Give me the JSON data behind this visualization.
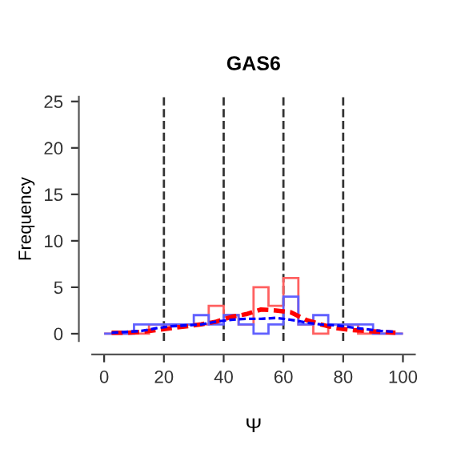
{
  "chart_data": {
    "type": "histogram",
    "title": "GAS6",
    "xlabel": "Ψ",
    "ylabel": "Frequency",
    "bins": [
      0,
      5,
      10,
      15,
      20,
      25,
      30,
      35,
      40,
      45,
      50,
      55,
      60,
      65,
      70,
      75,
      80,
      85,
      90,
      95,
      100
    ],
    "series": [
      {
        "type": "histogram",
        "color": "#ff6060",
        "values": [
          0,
          0,
          0,
          1,
          1,
          1,
          1,
          3,
          2,
          1,
          5,
          3,
          6,
          1,
          0,
          1,
          1,
          0,
          0,
          0
        ]
      },
      {
        "type": "histogram",
        "color": "#6060ff",
        "values": [
          0,
          0,
          1,
          1,
          1,
          1,
          2,
          1,
          2,
          1,
          0,
          1,
          4,
          1,
          2,
          1,
          1,
          1,
          0,
          0
        ]
      },
      {
        "type": "line",
        "color": "#ff0000",
        "line_style": "dashed",
        "x": [
          2.5,
          7.5,
          12.5,
          17.5,
          22.5,
          27.5,
          32.5,
          37.5,
          42.5,
          47.5,
          52.5,
          57.5,
          62.5,
          67.5,
          72.5,
          77.5,
          82.5,
          87.5,
          92.5,
          97.5
        ],
        "values": [
          0.1,
          0.1,
          0.2,
          0.4,
          0.6,
          0.8,
          1.0,
          1.3,
          1.8,
          2.1,
          2.6,
          2.5,
          2.3,
          1.5,
          1.0,
          0.6,
          0.4,
          0.3,
          0.2,
          0.1
        ]
      },
      {
        "type": "line",
        "color": "#0000ff",
        "line_style": "dashed",
        "x": [
          2.5,
          7.5,
          12.5,
          17.5,
          22.5,
          27.5,
          32.5,
          37.5,
          42.5,
          47.5,
          52.5,
          57.5,
          62.5,
          67.5,
          72.5,
          77.5,
          82.5,
          87.5,
          92.5,
          97.5
        ],
        "values": [
          0.1,
          0.2,
          0.3,
          0.6,
          0.8,
          0.9,
          1.0,
          1.3,
          1.5,
          1.6,
          1.6,
          1.7,
          1.5,
          1.2,
          1.0,
          0.9,
          0.7,
          0.5,
          0.3,
          0.2
        ]
      }
    ],
    "ref_lines": [
      {
        "axis": "x",
        "value": 20,
        "color": "#333333",
        "line_style": "dashed"
      },
      {
        "axis": "x",
        "value": 40,
        "color": "#333333",
        "line_style": "dashed"
      },
      {
        "axis": "x",
        "value": 60,
        "color": "#333333",
        "line_style": "dashed"
      },
      {
        "axis": "x",
        "value": 80,
        "color": "#333333",
        "line_style": "dashed"
      }
    ],
    "xlim": [
      -4,
      104
    ],
    "ylim": [
      -0.8,
      25.5
    ],
    "xticks": [
      0,
      20,
      40,
      60,
      80,
      100
    ],
    "yticks": [
      0,
      5,
      10,
      15,
      20,
      25
    ],
    "grid": false,
    "legend": false
  }
}
